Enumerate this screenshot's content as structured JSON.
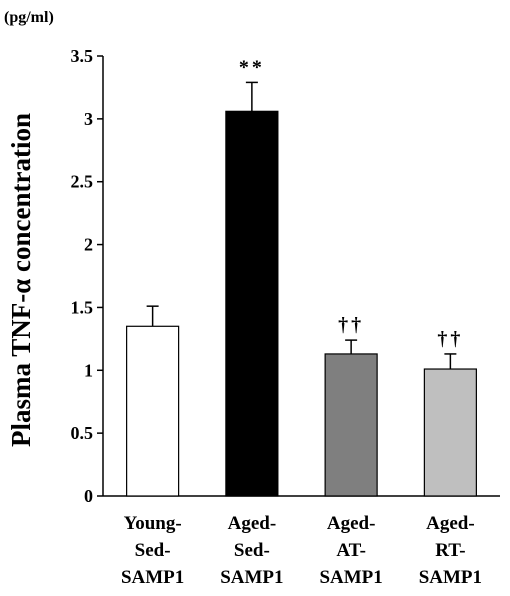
{
  "chart_data": {
    "type": "bar",
    "unit_label": "(pg/ml)",
    "ylabel": "Plasma TNF-α concentration",
    "ylim": [
      0,
      3.5
    ],
    "yticks": [
      "0",
      "0.5",
      "1",
      "1.5",
      "2",
      "2.5",
      "3",
      "3.5"
    ],
    "categories": [
      [
        "Young-",
        "Sed-",
        "SAMP1"
      ],
      [
        "Aged-",
        "Sed-",
        "SAMP1"
      ],
      [
        "Aged-",
        "AT-",
        "SAMP1"
      ],
      [
        "Aged-",
        "RT-",
        "SAMP1"
      ]
    ],
    "values": [
      1.35,
      3.06,
      1.13,
      1.01
    ],
    "errors": [
      0.16,
      0.23,
      0.11,
      0.12
    ],
    "fills": [
      "#ffffff",
      "#000000",
      "#7f7f7f",
      "#bfbfbf"
    ],
    "annotations": [
      "",
      "**",
      "††",
      "††"
    ],
    "grid": false,
    "legend": "none"
  }
}
